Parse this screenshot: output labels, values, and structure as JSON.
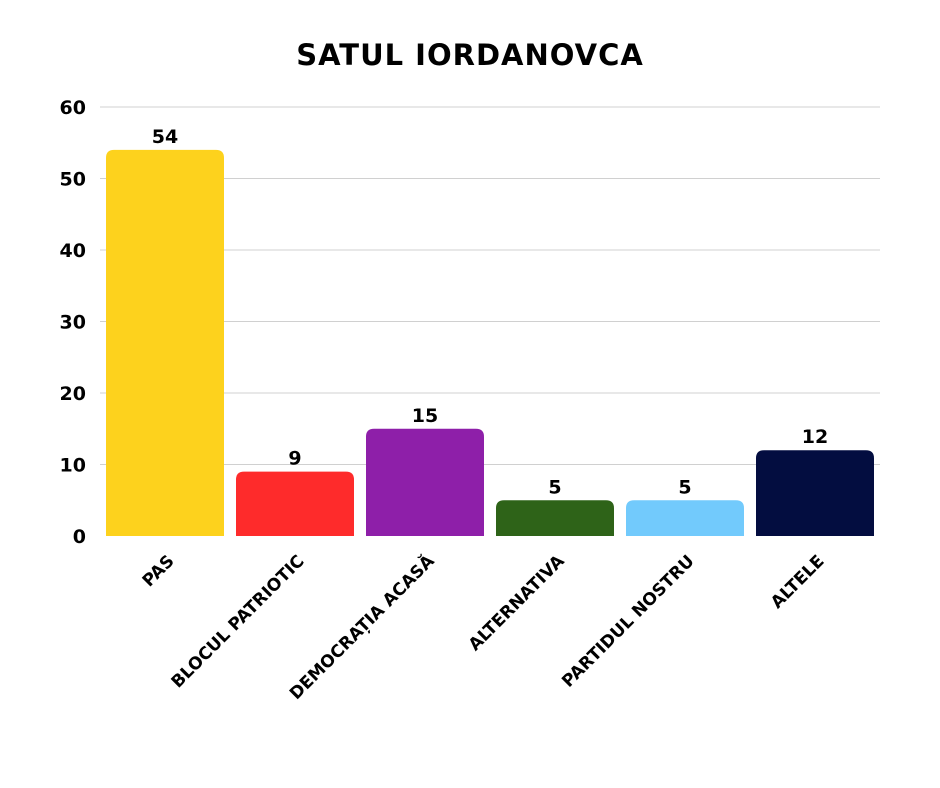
{
  "chart_data": {
    "type": "bar",
    "title": "SATUL IORDANOVCA",
    "xlabel": "",
    "ylabel": "",
    "categories": [
      "PAS",
      "BLOCUL PATRIOTIC",
      "DEMOCRAȚIA ACASĂ",
      "ALTERNATIVA",
      "PARTIDUL NOSTRU",
      "ALTELE"
    ],
    "values": [
      54,
      9,
      15,
      5,
      5,
      12
    ],
    "colors": [
      "#FDD21D",
      "#FE2B2B",
      "#8E1FA9",
      "#2E6318",
      "#72CAFC",
      "#030D40"
    ],
    "ylim": [
      0,
      60
    ],
    "yticks": [
      0,
      10,
      20,
      30,
      40,
      50,
      60
    ],
    "grid": true,
    "legend": "none"
  }
}
